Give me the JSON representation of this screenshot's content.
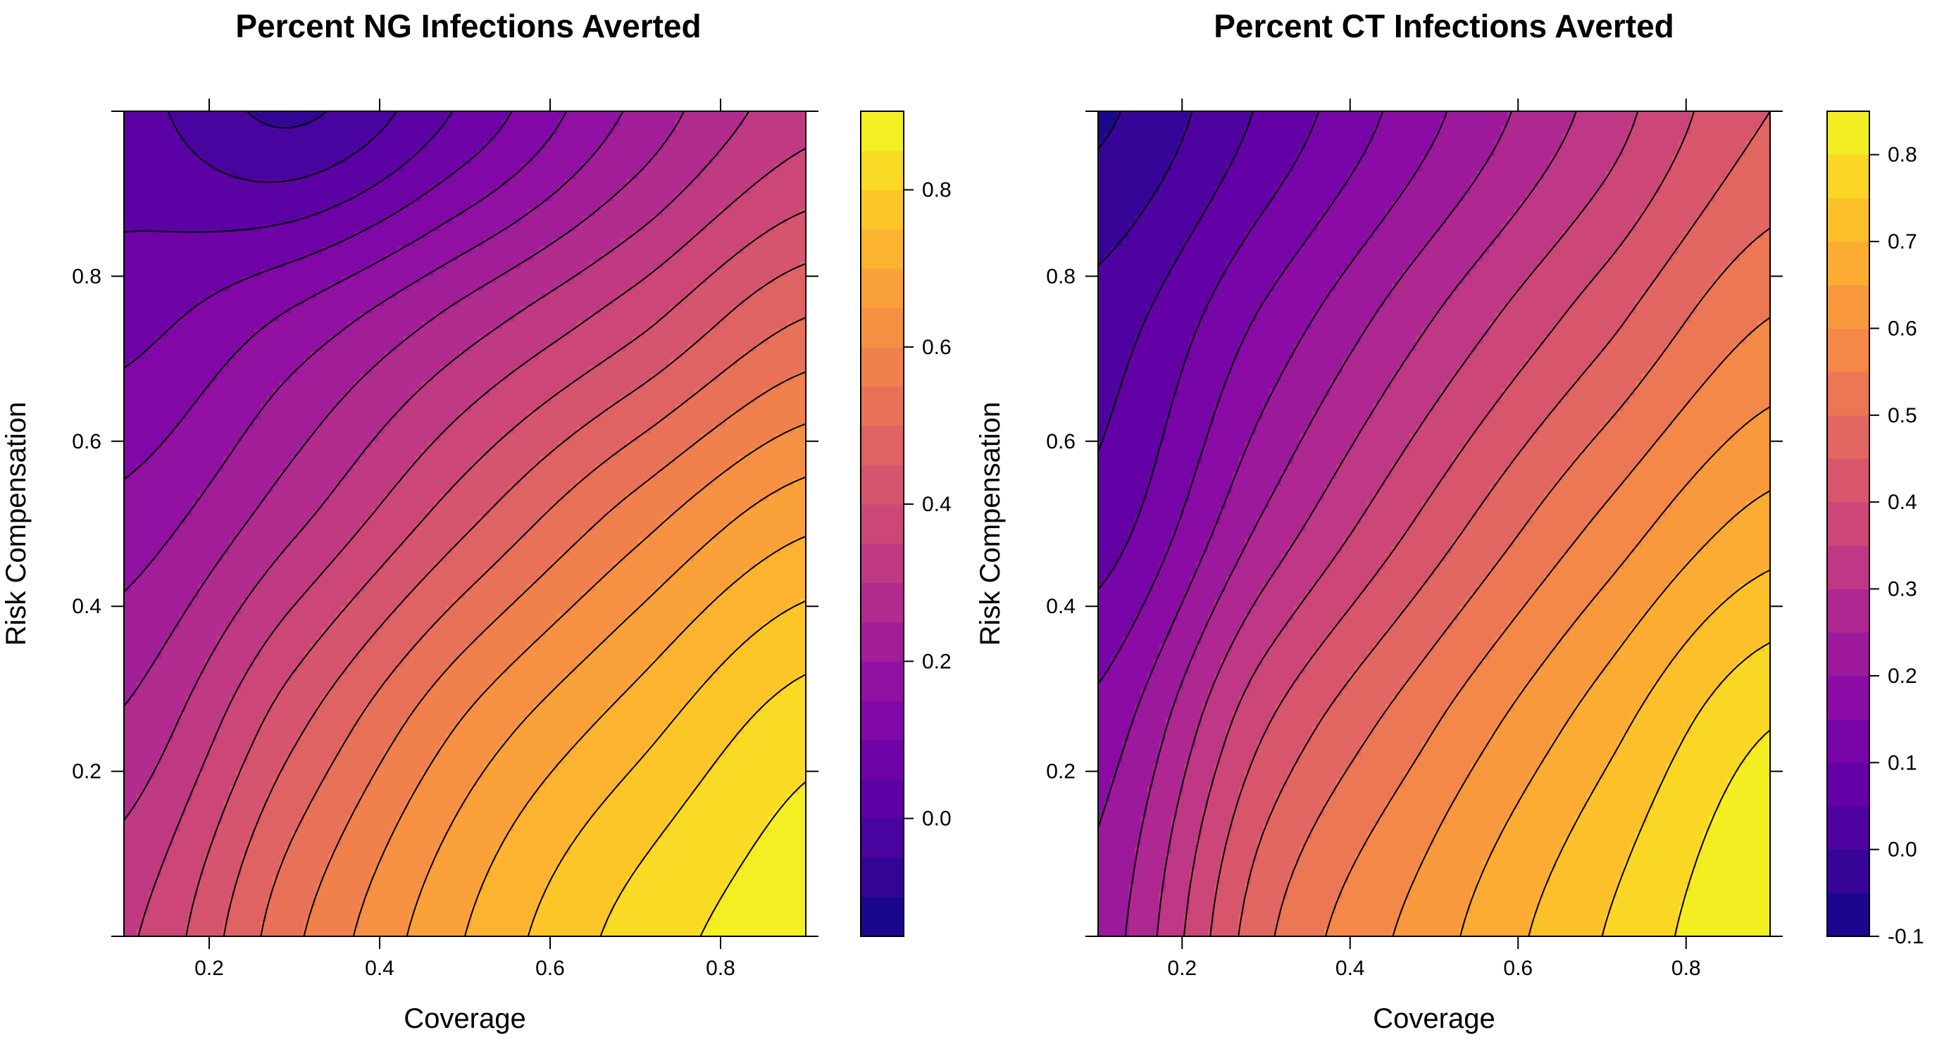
{
  "chart_data": [
    {
      "type": "contour",
      "title": "Percent NG Infections Averted",
      "xlabel": "Coverage",
      "ylabel": "Risk Compensation",
      "xlim": [
        0.1,
        0.9
      ],
      "ylim": [
        0.0,
        1.0
      ],
      "x_ticks": [
        "0.2",
        "0.4",
        "0.6",
        "0.8"
      ],
      "y_ticks": [
        "0.2",
        "0.4",
        "0.6",
        "0.8"
      ],
      "legend_position": "right",
      "colorbar": {
        "min": -0.15,
        "max": 0.9,
        "step": 0.05,
        "ticks": [
          "0.0",
          "0.2",
          "0.4",
          "0.6",
          "0.8"
        ]
      },
      "surface": {
        "x": [
          0.1,
          0.3,
          0.5,
          0.7,
          0.9
        ],
        "y": [
          0.0,
          0.25,
          0.5,
          0.75,
          1.0
        ],
        "z": [
          [
            0.34,
            0.54,
            0.7,
            0.82,
            0.88
          ],
          [
            0.26,
            0.44,
            0.61,
            0.73,
            0.83
          ],
          [
            0.17,
            0.29,
            0.44,
            0.58,
            0.69
          ],
          [
            0.08,
            0.16,
            0.27,
            0.38,
            0.5
          ],
          [
            0.02,
            -0.06,
            0.06,
            0.21,
            0.33
          ]
        ]
      }
    },
    {
      "type": "contour",
      "title": "Percent CT Infections Averted",
      "xlabel": "Coverage",
      "ylabel": "Risk Compensation",
      "xlim": [
        0.1,
        0.9
      ],
      "ylim": [
        0.0,
        1.0
      ],
      "x_ticks": [
        "0.2",
        "0.4",
        "0.6",
        "0.8"
      ],
      "y_ticks": [
        "0.2",
        "0.4",
        "0.6",
        "0.8"
      ],
      "legend_position": "right",
      "colorbar": {
        "min": -0.1,
        "max": 0.85,
        "step": 0.05,
        "ticks": [
          "-0.1",
          "0.0",
          "0.1",
          "0.2",
          "0.3",
          "0.4",
          "0.5",
          "0.6",
          "0.7",
          "0.8"
        ]
      },
      "surface": {
        "x": [
          0.1,
          0.3,
          0.5,
          0.7,
          0.9
        ],
        "y": [
          0.0,
          0.25,
          0.5,
          0.75,
          1.0
        ],
        "z": [
          [
            0.22,
            0.49,
            0.63,
            0.75,
            0.85
          ],
          [
            0.17,
            0.4,
            0.55,
            0.68,
            0.8
          ],
          [
            0.07,
            0.26,
            0.42,
            0.56,
            0.67
          ],
          [
            0.02,
            0.16,
            0.3,
            0.43,
            0.55
          ],
          [
            -0.06,
            0.06,
            0.19,
            0.32,
            0.45
          ]
        ]
      }
    }
  ]
}
